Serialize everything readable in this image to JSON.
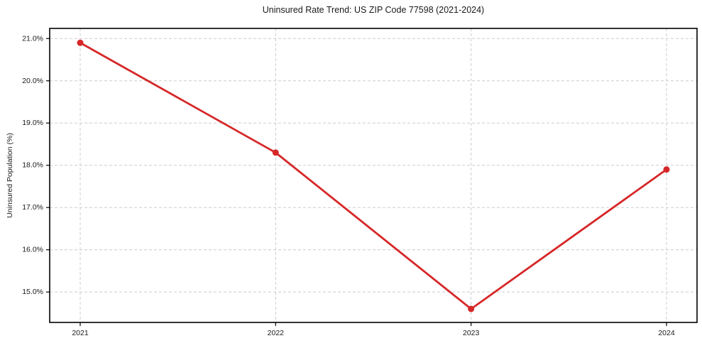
{
  "chart_data": {
    "type": "line",
    "title": "Uninsured Rate Trend: US ZIP Code 77598 (2021-2024)",
    "xlabel": "",
    "ylabel": "Uninsured Population (%)",
    "categories": [
      "2021",
      "2022",
      "2023",
      "2024"
    ],
    "series": [
      {
        "name": "uninsured-rate",
        "values": [
          20.9,
          18.3,
          14.6,
          17.9
        ],
        "color": "#d62728",
        "marker": "circle",
        "line_width": 2.8,
        "marker_radius": 4.5
      }
    ],
    "ylim": [
      14.28,
      21.24
    ],
    "yticks": [
      15.0,
      16.0,
      17.0,
      18.0,
      19.0,
      20.0,
      21.0
    ],
    "ytick_labels": [
      "15.0%",
      "16.0%",
      "17.0%",
      "18.0%",
      "19.0%",
      "20.0%",
      "21.0%"
    ],
    "grid": "dashed",
    "grid_color": "#cccccc",
    "spine_color": "#000000",
    "tick_label_color": "#1a1a1a",
    "legend": "none",
    "background": "#ffffff"
  }
}
